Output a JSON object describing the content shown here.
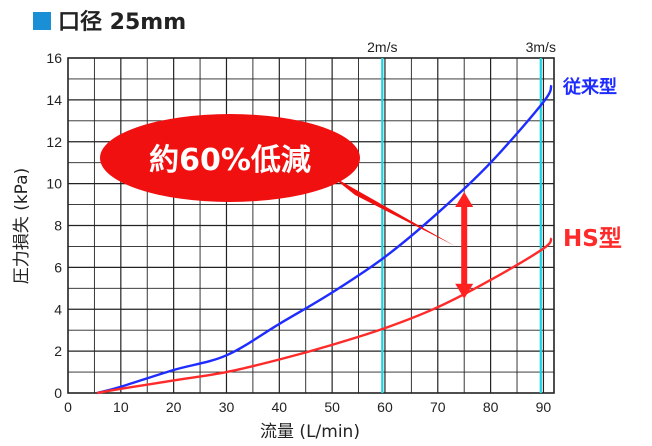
{
  "title": "口径 25mm",
  "colors": {
    "title_square": "#1a8fd6",
    "grid": "#222222",
    "ref_line": "#19d3e0",
    "series_conventional": "#1f2cff",
    "series_hs": "#ff2a2a",
    "callout": "#f01010",
    "callout_text": "#ffffff",
    "arrow": "#ff2020"
  },
  "chart_data": {
    "type": "line",
    "xlabel": "流量 (L/min)",
    "ylabel": "圧力損失 (kPa)",
    "xlim": [
      0,
      92
    ],
    "ylim": [
      0,
      16
    ],
    "x_ticks": [
      0,
      10,
      20,
      30,
      40,
      50,
      60,
      70,
      80,
      90
    ],
    "y_ticks": [
      0,
      2,
      4,
      6,
      8,
      10,
      12,
      14,
      16
    ],
    "grid": true,
    "reference_lines": [
      {
        "x": 59.5,
        "label": "2m/s"
      },
      {
        "x": 89.5,
        "label": "3m/s"
      }
    ],
    "series": [
      {
        "name": "従来型",
        "x": [
          5.5,
          10,
          20,
          30,
          40,
          50,
          60,
          70,
          80,
          90,
          91.5
        ],
        "values": [
          0.0,
          0.3,
          1.1,
          1.8,
          3.3,
          4.8,
          6.5,
          8.6,
          11.0,
          13.9,
          14.7
        ]
      },
      {
        "name": "HS型",
        "x": [
          5.5,
          10,
          20,
          30,
          40,
          50,
          60,
          70,
          80,
          90,
          91.5
        ],
        "values": [
          0.0,
          0.2,
          0.6,
          1.0,
          1.6,
          2.3,
          3.1,
          4.1,
          5.4,
          6.9,
          7.4
        ]
      }
    ],
    "annotations": [
      {
        "text": "約60%低減",
        "type": "callout"
      },
      {
        "type": "double-arrow",
        "x": 75,
        "y_from": 4.5,
        "y_to": 9.6
      }
    ]
  }
}
